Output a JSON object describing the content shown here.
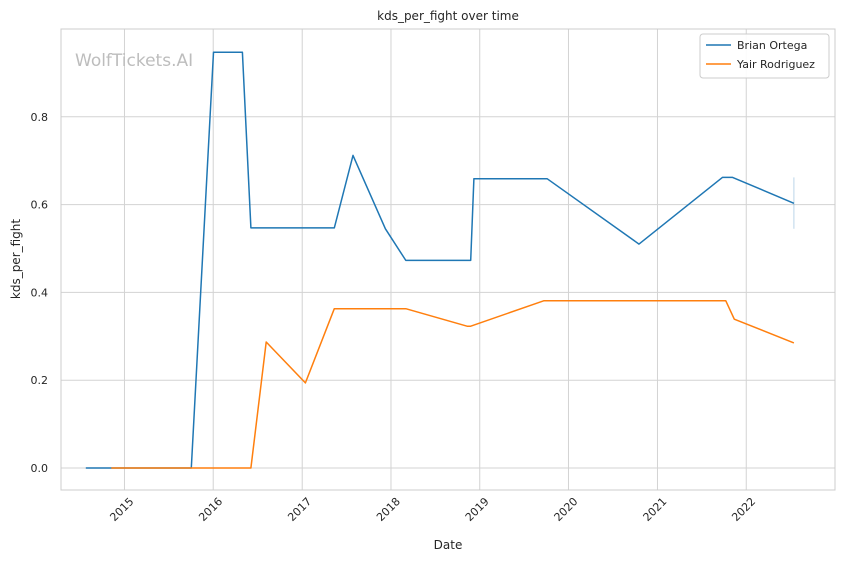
{
  "chart_data": {
    "type": "line",
    "title": "kds_per_fight over time",
    "xlabel": "Date",
    "ylabel": "kds_per_fight",
    "watermark": "WolfTickets.AI",
    "xlim": [
      "2014-04-15",
      "2023-01-01"
    ],
    "ylim": [
      -0.05,
      1.0
    ],
    "x_ticks": [
      "2015",
      "2016",
      "2017",
      "2018",
      "2019",
      "2020",
      "2021",
      "2022"
    ],
    "y_ticks": [
      "0.0",
      "0.2",
      "0.4",
      "0.6",
      "0.8"
    ],
    "y_tick_values": [
      0.0,
      0.2,
      0.4,
      0.6,
      0.8
    ],
    "grid": true,
    "legend_position": "top-right",
    "series": [
      {
        "name": "Brian Ortega",
        "color": "#1f77b4",
        "points": [
          [
            "2014-07-26",
            0.0
          ],
          [
            "2014-11-08",
            0.0
          ],
          [
            "2015-10-03",
            0.0
          ],
          [
            "2016-01-02",
            0.947
          ],
          [
            "2016-04-30",
            0.947
          ],
          [
            "2016-06-04",
            0.547
          ],
          [
            "2017-05-13",
            0.547
          ],
          [
            "2017-07-29",
            0.712
          ],
          [
            "2017-12-09",
            0.545
          ],
          [
            "2018-03-03",
            0.473
          ],
          [
            "2018-11-25",
            0.473
          ],
          [
            "2018-12-08",
            0.659
          ],
          [
            "2019-10-05",
            0.659
          ],
          [
            "2020-10-17",
            0.51
          ],
          [
            "2021-09-25",
            0.662
          ],
          [
            "2021-11-06",
            0.662
          ],
          [
            "2022-07-16",
            0.603
          ]
        ]
      },
      {
        "name": "Yair Rodriguez",
        "color": "#ff7f0e",
        "points": [
          [
            "2014-11-08",
            0.0
          ],
          [
            "2016-01-02",
            0.0
          ],
          [
            "2016-06-04",
            0.0
          ],
          [
            "2016-08-06",
            0.287
          ],
          [
            "2017-01-14",
            0.194
          ],
          [
            "2017-05-13",
            0.363
          ],
          [
            "2018-03-03",
            0.363
          ],
          [
            "2018-11-10",
            0.323
          ],
          [
            "2018-11-25",
            0.323
          ],
          [
            "2019-09-21",
            0.381
          ],
          [
            "2021-10-09",
            0.381
          ],
          [
            "2021-11-13",
            0.339
          ],
          [
            "2022-07-16",
            0.285
          ]
        ]
      }
    ],
    "error_bar": {
      "series": "Brian Ortega",
      "x": "2022-07-16",
      "y_range": [
        0.545,
        0.662
      ]
    }
  }
}
